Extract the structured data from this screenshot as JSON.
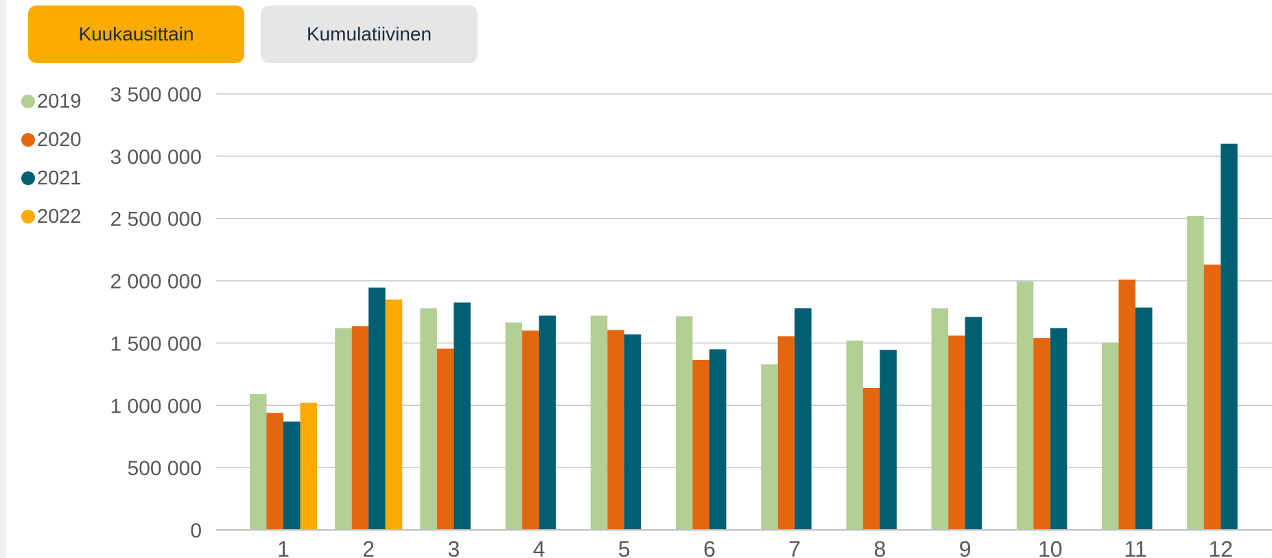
{
  "tabs": {
    "monthly": "Kuukausittain",
    "cumulative": "Kumulatiivinen"
  },
  "colors": {
    "active_tab": "#fbaa00",
    "inactive_tab": "#e6e6e6",
    "gridline": "#c8c8c8"
  },
  "chart_data": {
    "type": "bar",
    "categories": [
      "1",
      "2",
      "3",
      "4",
      "5",
      "6",
      "7",
      "8",
      "9",
      "10",
      "11",
      "12"
    ],
    "ylim": [
      0,
      3500000
    ],
    "yticks": [
      0,
      500000,
      1000000,
      1500000,
      2000000,
      2500000,
      3000000,
      3500000
    ],
    "ytick_labels": [
      "0",
      "500 000",
      "1 000 000",
      "1 500 000",
      "2 000 000",
      "2 500 000",
      "3 000 000",
      "3 500 000"
    ],
    "grid": true,
    "legend_position": "left",
    "series": [
      {
        "name": "2019",
        "color": "#b3cf95",
        "values": [
          1090000,
          1620000,
          1780000,
          1665000,
          1720000,
          1715000,
          1330000,
          1520000,
          1780000,
          1995000,
          1505000,
          2520000
        ]
      },
      {
        "name": "2020",
        "color": "#e4670f",
        "values": [
          940000,
          1635000,
          1455000,
          1600000,
          1605000,
          1365000,
          1555000,
          1140000,
          1560000,
          1540000,
          2010000,
          2130000
        ]
      },
      {
        "name": "2021",
        "color": "#005f73",
        "values": [
          870000,
          1945000,
          1825000,
          1720000,
          1570000,
          1450000,
          1780000,
          1445000,
          1710000,
          1620000,
          1785000,
          3100000
        ]
      },
      {
        "name": "2022",
        "color": "#fbaa00",
        "values": [
          1020000,
          1850000,
          null,
          null,
          null,
          null,
          null,
          null,
          null,
          null,
          null,
          null
        ]
      }
    ]
  }
}
